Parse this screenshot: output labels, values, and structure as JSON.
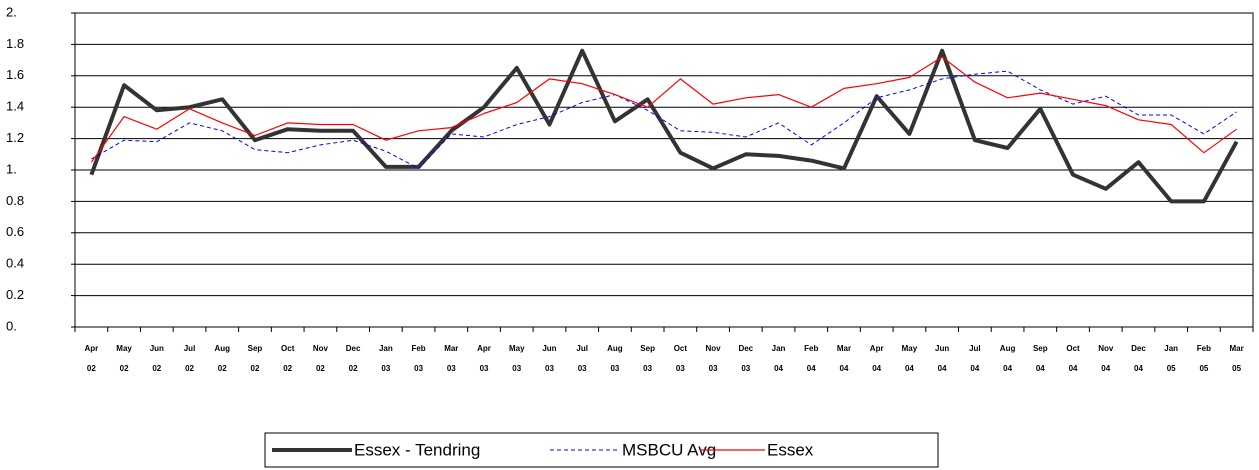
{
  "chart_data": {
    "type": "line",
    "categories": [
      [
        "Apr",
        "02"
      ],
      [
        "May",
        "02"
      ],
      [
        "Jun",
        "02"
      ],
      [
        "Jul",
        "02"
      ],
      [
        "Aug",
        "02"
      ],
      [
        "Sep",
        "02"
      ],
      [
        "Oct",
        "02"
      ],
      [
        "Nov",
        "02"
      ],
      [
        "Dec",
        "02"
      ],
      [
        "Jan",
        "03"
      ],
      [
        "Feb",
        "03"
      ],
      [
        "Mar",
        "03"
      ],
      [
        "Apr",
        "03"
      ],
      [
        "May",
        "03"
      ],
      [
        "Jun",
        "03"
      ],
      [
        "Jul",
        "03"
      ],
      [
        "Aug",
        "03"
      ],
      [
        "Sep",
        "03"
      ],
      [
        "Oct",
        "03"
      ],
      [
        "Nov",
        "03"
      ],
      [
        "Dec",
        "03"
      ],
      [
        "Jan",
        "04"
      ],
      [
        "Feb",
        "04"
      ],
      [
        "Mar",
        "04"
      ],
      [
        "Apr",
        "04"
      ],
      [
        "May",
        "04"
      ],
      [
        "Jun",
        "04"
      ],
      [
        "Jul",
        "04"
      ],
      [
        "Aug",
        "04"
      ],
      [
        "Sep",
        "04"
      ],
      [
        "Oct",
        "04"
      ],
      [
        "Nov",
        "04"
      ],
      [
        "Dec",
        "04"
      ],
      [
        "Jan",
        "05"
      ],
      [
        "Feb",
        "05"
      ],
      [
        "Mar",
        "05"
      ]
    ],
    "series": [
      {
        "name": "Essex - Tendring",
        "color": "#333333",
        "width": 4,
        "dash": false,
        "values": [
          0.97,
          1.54,
          1.38,
          1.4,
          1.45,
          1.19,
          1.26,
          1.25,
          1.25,
          1.02,
          1.02,
          1.25,
          1.4,
          1.65,
          1.29,
          1.76,
          1.31,
          1.45,
          1.11,
          1.01,
          1.1,
          1.09,
          1.06,
          1.01,
          1.47,
          1.23,
          1.76,
          1.19,
          1.14,
          1.39,
          0.97,
          0.88,
          1.05,
          0.8,
          0.8,
          1.18
        ]
      },
      {
        "name": "MSBCU Avg",
        "color": "#0000ff",
        "width": 1,
        "dash": true,
        "values": [
          1.07,
          1.19,
          1.18,
          1.3,
          1.25,
          1.13,
          1.11,
          1.16,
          1.19,
          1.12,
          1.01,
          1.23,
          1.21,
          1.29,
          1.34,
          1.43,
          1.48,
          1.38,
          1.25,
          1.24,
          1.21,
          1.3,
          1.16,
          1.3,
          1.46,
          1.51,
          1.58,
          1.61,
          1.63,
          1.51,
          1.42,
          1.47,
          1.35,
          1.35,
          1.23,
          1.37
        ]
      },
      {
        "name": "Essex",
        "color": "#ff0000",
        "width": 1.2,
        "dash": false,
        "values": [
          1.05,
          1.34,
          1.26,
          1.39,
          1.3,
          1.22,
          1.3,
          1.29,
          1.29,
          1.19,
          1.25,
          1.27,
          1.36,
          1.43,
          1.58,
          1.55,
          1.48,
          1.4,
          1.58,
          1.42,
          1.46,
          1.48,
          1.4,
          1.52,
          1.55,
          1.59,
          1.72,
          1.56,
          1.46,
          1.49,
          1.45,
          1.41,
          1.32,
          1.29,
          1.11,
          1.26
        ]
      }
    ],
    "ylim": [
      0,
      2
    ],
    "yticks": [
      {
        "value": 0,
        "label": "0."
      },
      0.2,
      0.4,
      0.6,
      0.8,
      {
        "value": 1,
        "label": "1."
      },
      1.2,
      1.4,
      1.6,
      1.8,
      {
        "value": 2,
        "label": "2."
      }
    ],
    "grid": true,
    "legend": "bottom"
  }
}
